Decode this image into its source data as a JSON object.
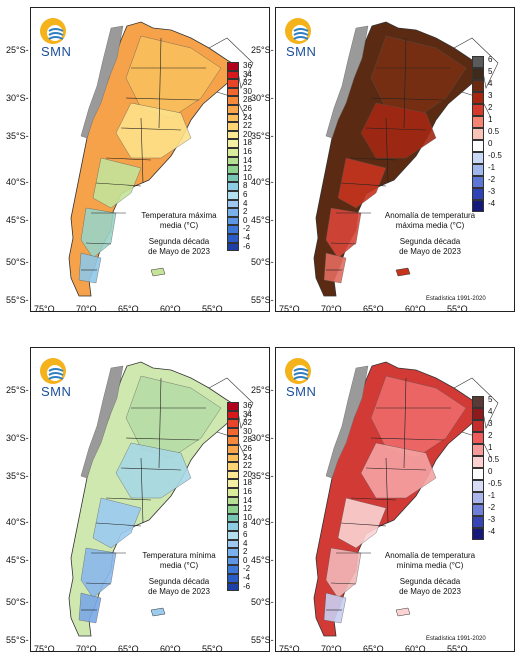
{
  "logo": {
    "text": "SMN"
  },
  "lat_labels": [
    "25°S-",
    "30°S-",
    "35°S-",
    "40°S-",
    "45°S-",
    "50°S-",
    "55°S-"
  ],
  "lon_labels": [
    "75°O",
    "70°O",
    "65°O",
    "60°O",
    "55°O"
  ],
  "panels": [
    {
      "title_line1": "Temperatura máxima",
      "title_line2": "media (°C)",
      "period_line1": "Segunda década",
      "period_line2": "de Mayo de 2023",
      "legend": {
        "labels": [
          "36",
          "34",
          "32",
          "30",
          "28",
          "26",
          "24",
          "22",
          "20",
          "18",
          "16",
          "14",
          "12",
          "10",
          "8",
          "6",
          "4",
          "2",
          "0",
          "-2",
          "-4",
          "-6"
        ],
        "colors": [
          "#b1001d",
          "#d7191c",
          "#e8442a",
          "#f0672f",
          "#f58a3c",
          "#f9a64d",
          "#fbbf5c",
          "#fdd575",
          "#fee893",
          "#f3f0a3",
          "#d9ec9b",
          "#b5df92",
          "#8fd18f",
          "#76c6b2",
          "#8ccde3",
          "#b3e0f0",
          "#9ec8f0",
          "#7ab0ec",
          "#5c96e4",
          "#3d77d8",
          "#2b5bc7",
          "#1e3fa6"
        ]
      },
      "stats": ""
    },
    {
      "title_line1": "Anomalía de temperatura",
      "title_line2": "máxima media (°C)",
      "period_line1": "Segunda década",
      "period_line2": "de Mayo de 2023",
      "legend": {
        "labels": [
          "6",
          "5",
          "4",
          "3",
          "2",
          "1",
          "0.5",
          "0",
          "-0.5",
          "-1",
          "-2",
          "-3",
          "-4"
        ],
        "colors": [
          "#5a5a5a",
          "#3f2a1c",
          "#6b2a10",
          "#a6260e",
          "#d53b2a",
          "#f48572",
          "#f9c3b8",
          "#ffffff",
          "#c9d8f4",
          "#9fb7ec",
          "#5c77d6",
          "#2e43b5",
          "#15197a"
        ]
      },
      "stats": "Estadística 1991-2020"
    },
    {
      "title_line1": "Temperatura mínima",
      "title_line2": "media (°C)",
      "period_line1": "Segunda década",
      "period_line2": "de Mayo de 2023",
      "legend": {
        "labels": [
          "36",
          "34",
          "32",
          "30",
          "28",
          "26",
          "24",
          "22",
          "20",
          "18",
          "16",
          "14",
          "12",
          "10",
          "8",
          "6",
          "4",
          "2",
          "0",
          "-2",
          "-4",
          "-6"
        ],
        "colors": [
          "#b1001d",
          "#d7191c",
          "#e8442a",
          "#f0672f",
          "#f58a3c",
          "#f9a64d",
          "#fbbf5c",
          "#fdd575",
          "#fee893",
          "#f3f0a3",
          "#d9ec9b",
          "#b5df92",
          "#8fd18f",
          "#76c6b2",
          "#8ccde3",
          "#b3e0f0",
          "#9ec8f0",
          "#7ab0ec",
          "#5c96e4",
          "#3d77d8",
          "#2b5bc7",
          "#1e3fa6"
        ]
      },
      "stats": ""
    },
    {
      "title_line1": "Anomalía de temperatura",
      "title_line2": "mínima media (°C)",
      "period_line1": "Segunda década",
      "period_line2": "de Mayo de 2023",
      "legend": {
        "labels": [
          "5",
          "4",
          "3",
          "2",
          "1",
          "0.5",
          "0",
          "-0.5",
          "-1",
          "-2",
          "-3",
          "-4"
        ],
        "colors": [
          "#5a3a35",
          "#8e1b1b",
          "#c62b2b",
          "#ef5a5a",
          "#f79a9a",
          "#fbd0d0",
          "#ffffff",
          "#d7dcf4",
          "#aab5ec",
          "#6f7fd8",
          "#3645b3",
          "#151a7a"
        ]
      },
      "stats": "Estadística 1991-2020"
    }
  ]
}
